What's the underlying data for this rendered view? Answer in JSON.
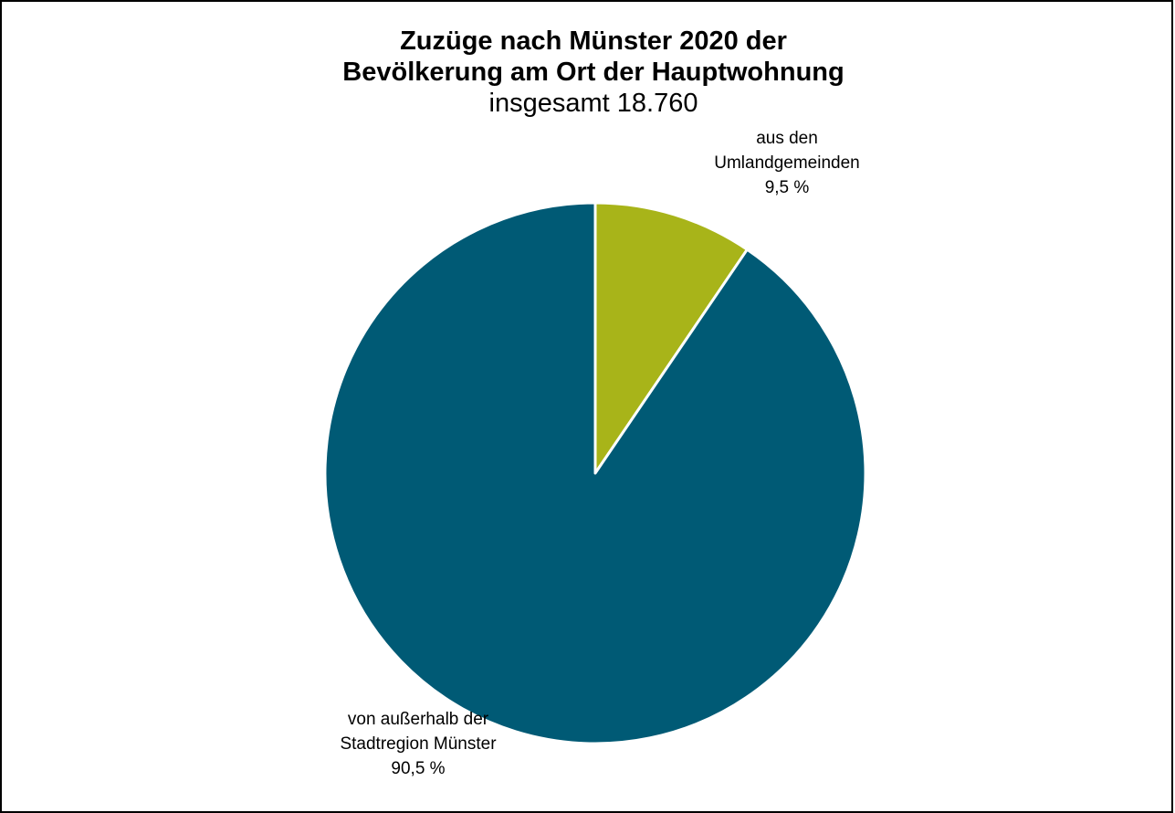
{
  "chart_data": {
    "type": "pie",
    "title": [
      "Zuzüge nach Münster 2020 der",
      "Bevölkerung am Ort der Hauptwohnung"
    ],
    "subtitle": "insgesamt 18.760",
    "slices": [
      {
        "label_lines": [
          "aus den",
          "Umlandgemeinden"
        ],
        "value": 9.5,
        "value_label": "9,5 %",
        "color": "#a8b419"
      },
      {
        "label_lines": [
          "von außerhalb der",
          "Stadtregion Münster"
        ],
        "value": 90.5,
        "value_label": "90,5 %",
        "color": "#005a75"
      }
    ],
    "start_angle": "12 o'clock",
    "direction": "clockwise",
    "slice_border_color": "#ffffff",
    "legend": "none"
  }
}
